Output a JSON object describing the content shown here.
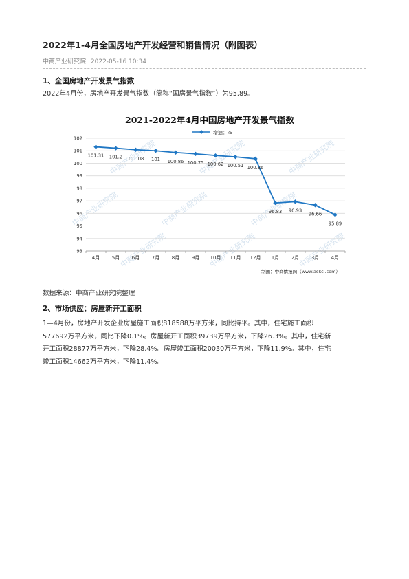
{
  "article": {
    "title": "2022年1-4月全国房地产开发经营和销售情况（附图表）",
    "author": "中商产业研究院",
    "datetime": "2022-05-16 10:34",
    "section1": {
      "heading": "1、全国房地产开发景气指数",
      "text": "2022年4月份，房地产开发景气指数（简称“国房景气指数”）为95.89。"
    },
    "source": "数据来源：中商产业研究院整理",
    "section2": {
      "heading": "2、市场供应：房屋新开工面积",
      "lines": [
        "1—4月份，房地产开发企业房屋施工面积818588万平方米，同比持平。其中，住宅施工面积",
        "577692万平方米，同比下降0.1%。房屋新开工面积39739万平方米，下降26.3%。其中，住宅新",
        "开工面积28877万平方米，下降28.4%。房屋竣工面积20030万平方米，下降11.9%。其中，住宅",
        "竣工面积14662万平方米，下降11.4%。"
      ]
    }
  },
  "chart_data": {
    "type": "line",
    "title": "2021-2022年4月中国房地产开发景气指数",
    "legend": "增速：%",
    "legend_position": "top-center",
    "categories": [
      "4月",
      "5月",
      "6月",
      "7月",
      "8月",
      "9月",
      "10月",
      "11月",
      "12月",
      "1月",
      "2月",
      "3月",
      "4月"
    ],
    "series": [
      {
        "name": "增速：%",
        "values": [
          101.31,
          101.2,
          101.08,
          101,
          100.86,
          100.75,
          100.62,
          100.51,
          100.36,
          96.83,
          96.93,
          96.66,
          95.89
        ],
        "labels": [
          "101.31",
          "101.2",
          "101.08",
          "101",
          "100.86",
          "100.75",
          "100.62",
          "100.51",
          "100.36",
          "96.83",
          "96.93",
          "96.66",
          "95.89"
        ]
      }
    ],
    "ylim": [
      93,
      102
    ],
    "yticks": [
      93,
      94,
      95,
      96,
      97,
      98,
      99,
      100,
      101,
      102
    ],
    "grid": true,
    "color": "#1f77c4",
    "watermark": "中商产业研究院",
    "footer": "制图：中商情报网（www.askci.com）"
  }
}
